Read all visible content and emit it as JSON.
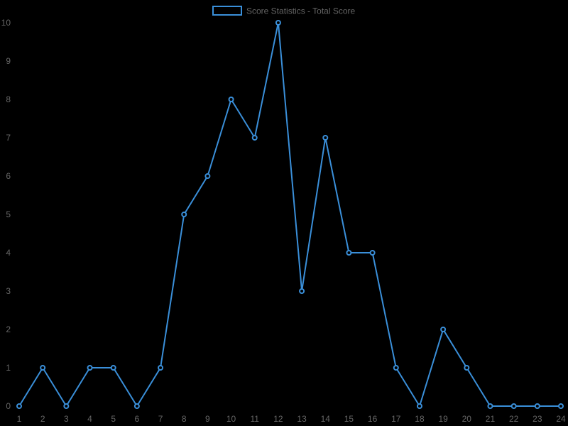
{
  "chart_data": {
    "type": "line",
    "title": "",
    "xlabel": "",
    "ylabel": "",
    "x": [
      "1",
      "2",
      "3",
      "4",
      "5",
      "6",
      "7",
      "8",
      "9",
      "10",
      "11",
      "12",
      "13",
      "14",
      "15",
      "16",
      "17",
      "18",
      "19",
      "20",
      "21",
      "22",
      "23",
      "24"
    ],
    "series": [
      {
        "name": "Score Statistics - Total Score",
        "values": [
          0,
          1,
          0,
          1,
          1,
          0,
          1,
          5,
          6,
          8,
          7,
          10,
          3,
          7,
          4,
          4,
          1,
          0,
          2,
          1,
          0,
          0,
          0,
          0
        ],
        "color": "#3a8fd9"
      }
    ],
    "ylim": [
      0,
      10
    ],
    "yticks": [
      0,
      1,
      2,
      3,
      4,
      5,
      6,
      7,
      8,
      9,
      10
    ],
    "grid": false,
    "legend": "top-center"
  },
  "colors": {
    "background": "#000000",
    "text": "#666666",
    "series": "#3a8fd9"
  }
}
